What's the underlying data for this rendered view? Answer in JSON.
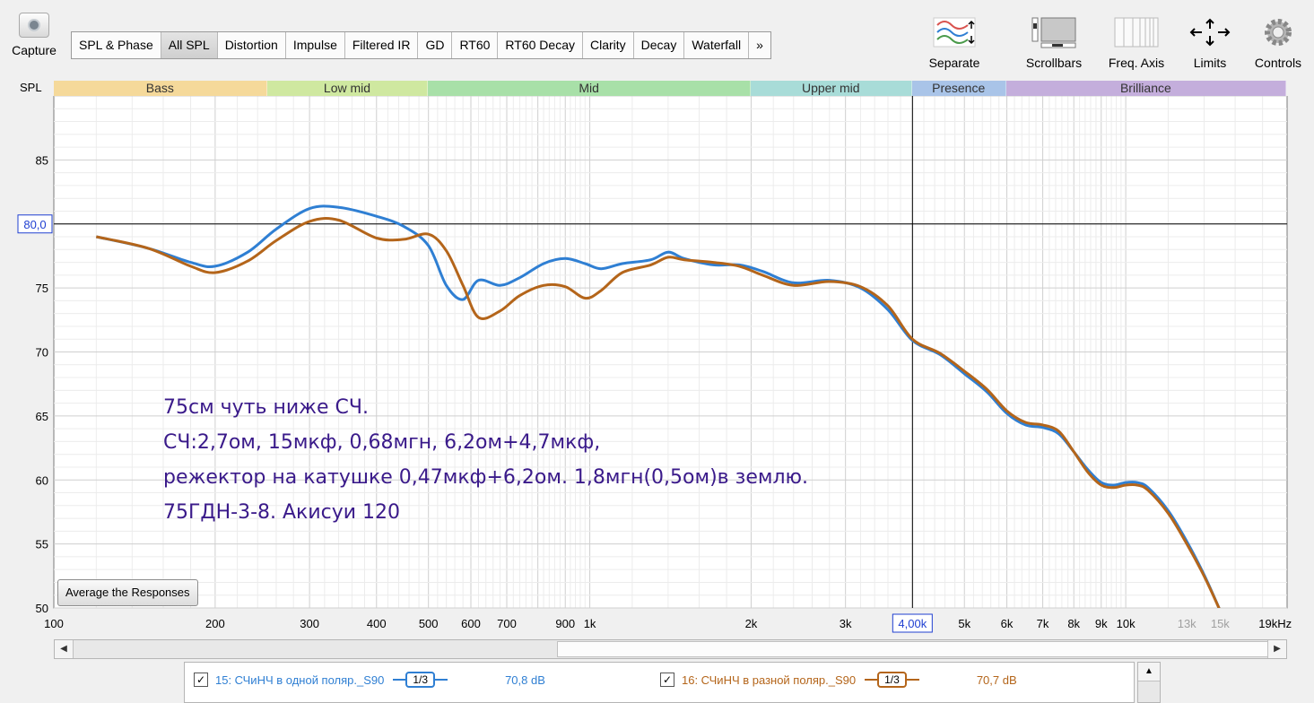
{
  "toolbar": {
    "capture_label": "Capture",
    "tabs": [
      "SPL & Phase",
      "All SPL",
      "Distortion",
      "Impulse",
      "Filtered IR",
      "GD",
      "RT60",
      "RT60 Decay",
      "Clarity",
      "Decay",
      "Waterfall",
      "»"
    ],
    "active_tab": "All SPL",
    "tools": [
      {
        "label": "Separate",
        "icon": "separate-traces-icon"
      },
      {
        "label": "Scrollbars",
        "icon": "scrollbars-icon"
      },
      {
        "label": "Freq. Axis",
        "icon": "freq-axis-icon"
      },
      {
        "label": "Limits",
        "icon": "limits-icon"
      },
      {
        "label": "Controls",
        "icon": "controls-gear-icon"
      }
    ]
  },
  "spl_label": "SPL",
  "bands": [
    {
      "label": "Bass",
      "from": 100,
      "to": 250,
      "color": "#f5d99a"
    },
    {
      "label": "Low mid",
      "from": 250,
      "to": 500,
      "color": "#cfe8a0"
    },
    {
      "label": "Mid",
      "from": 500,
      "to": 2000,
      "color": "#a8e0a8"
    },
    {
      "label": "Upper mid",
      "from": 2000,
      "to": 4000,
      "color": "#a8dcd8"
    },
    {
      "label": "Presence",
      "from": 4000,
      "to": 6000,
      "color": "#a9c4e8"
    },
    {
      "label": "Brilliance",
      "from": 6000,
      "to": 20000,
      "color": "#c4aedc"
    }
  ],
  "chart_data": {
    "type": "line",
    "xscale": "log",
    "xlim": [
      100,
      20000
    ],
    "ylim": [
      50,
      90
    ],
    "x_ticks": [
      {
        "v": 100,
        "l": "100"
      },
      {
        "v": 200,
        "l": "200"
      },
      {
        "v": 300,
        "l": "300"
      },
      {
        "v": 400,
        "l": "400"
      },
      {
        "v": 500,
        "l": "500"
      },
      {
        "v": 600,
        "l": "600"
      },
      {
        "v": 700,
        "l": "700"
      },
      {
        "v": 900,
        "l": "900"
      },
      {
        "v": 1000,
        "l": "1k"
      },
      {
        "v": 2000,
        "l": "2k"
      },
      {
        "v": 3000,
        "l": "3k"
      },
      {
        "v": 5000,
        "l": "5k"
      },
      {
        "v": 6000,
        "l": "6k"
      },
      {
        "v": 7000,
        "l": "7k"
      },
      {
        "v": 8000,
        "l": "8k"
      },
      {
        "v": 9000,
        "l": "9k"
      },
      {
        "v": 10000,
        "l": "10k"
      },
      {
        "v": 13000,
        "l": "13k",
        "dim": true
      },
      {
        "v": 15000,
        "l": "15k",
        "dim": true
      },
      {
        "v": 19000,
        "l": "19kHz"
      }
    ],
    "y_ticks": [
      50,
      55,
      60,
      65,
      70,
      75,
      85
    ],
    "cursor": {
      "x_label": "4,00k",
      "y_label": "80,0",
      "x": 4000,
      "y": 80
    },
    "series": [
      {
        "name": "15: СЧиНЧ в одной поляр._S90",
        "color": "#2f7fd3",
        "x": [
          120,
          150,
          180,
          200,
          230,
          260,
          300,
          340,
          400,
          450,
          500,
          540,
          580,
          620,
          680,
          740,
          820,
          900,
          980,
          1050,
          1150,
          1300,
          1400,
          1500,
          1700,
          1900,
          2100,
          2400,
          2800,
          3200,
          3600,
          4000,
          4500,
          5000,
          5500,
          6000,
          6500,
          7000,
          7500,
          8000,
          8500,
          9000,
          9500,
          10000,
          10500,
          11000,
          12000,
          13000,
          14000,
          15000
        ],
        "y": [
          79,
          78.1,
          77,
          76.7,
          77.8,
          79.6,
          81.2,
          81.3,
          80.6,
          79.8,
          78.3,
          75.2,
          74.1,
          75.6,
          75.2,
          75.8,
          76.9,
          77.3,
          76.9,
          76.5,
          76.9,
          77.2,
          77.8,
          77.3,
          76.8,
          76.8,
          76.3,
          75.4,
          75.6,
          75.0,
          73.3,
          70.9,
          69.8,
          68.3,
          66.9,
          65.2,
          64.3,
          64.1,
          63.6,
          62.2,
          60.8,
          59.8,
          59.6,
          59.8,
          59.8,
          59.4,
          57.6,
          55.2,
          52.6,
          49.8
        ]
      },
      {
        "name": "16: СЧиНЧ в разной поляр._S90",
        "color": "#b4651a",
        "x": [
          120,
          150,
          180,
          200,
          230,
          260,
          300,
          340,
          400,
          450,
          500,
          540,
          580,
          620,
          680,
          740,
          820,
          900,
          980,
          1050,
          1150,
          1300,
          1400,
          1500,
          1700,
          1900,
          2100,
          2400,
          2800,
          3200,
          3600,
          4000,
          4500,
          5000,
          5500,
          6000,
          6500,
          7000,
          7500,
          8000,
          8500,
          9000,
          9500,
          10000,
          10500,
          11000,
          12000,
          13000,
          14000,
          15000
        ],
        "y": [
          79,
          78.1,
          76.7,
          76.2,
          77.1,
          78.7,
          80.2,
          80.3,
          78.9,
          78.8,
          79.2,
          77.9,
          75.2,
          72.7,
          73.2,
          74.4,
          75.2,
          75.1,
          74.2,
          74.8,
          76.2,
          76.8,
          77.4,
          77.2,
          77.0,
          76.7,
          76.0,
          75.2,
          75.5,
          75.1,
          73.6,
          71.0,
          69.9,
          68.5,
          67.1,
          65.4,
          64.5,
          64.3,
          63.8,
          62.2,
          60.6,
          59.6,
          59.4,
          59.6,
          59.6,
          59.2,
          57.4,
          55.0,
          52.5,
          49.8
        ]
      }
    ]
  },
  "annotation": {
    "lines": [
      "75см чуть ниже СЧ.",
      "СЧ:2,7ом, 15мкф, 0,68мгн, 6,2ом+4,7мкф,",
      "режектор на катушке 0,47мкф+6,2ом. 1,8мгн(0,5ом)в землю.",
      "75ГДН-3-8. Акисуи 120"
    ],
    "color": "#3a1a8a"
  },
  "average_button": "Average the Responses",
  "legend": [
    {
      "check": "✓",
      "name": "15: СЧиНЧ в одной поляр._S90",
      "smoothing": "1/3",
      "level": "70,8 dB",
      "color": "#2f7fd3"
    },
    {
      "check": "✓",
      "name": "16: СЧиНЧ в разной поляр._S90",
      "smoothing": "1/3",
      "level": "70,7 dB",
      "color": "#b4651a"
    }
  ]
}
